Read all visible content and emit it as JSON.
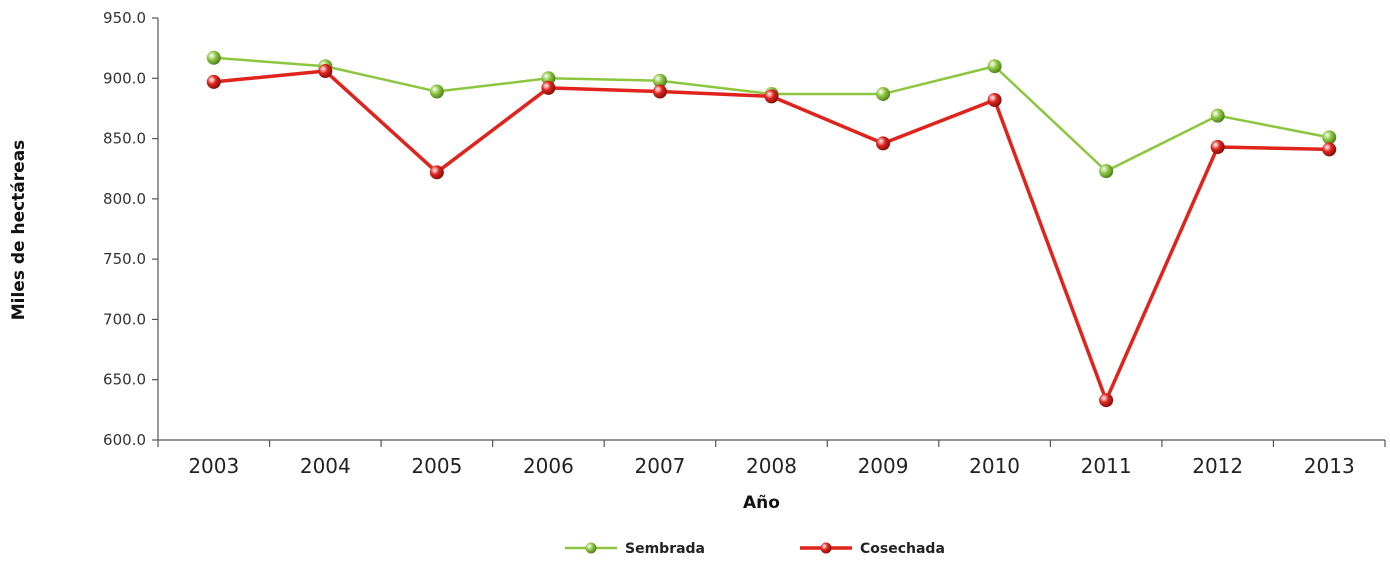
{
  "chart_data": {
    "type": "line",
    "xlabel": "Año",
    "ylabel": "Miles de hectáreas",
    "ylim": [
      600,
      950
    ],
    "yticks": [
      "600.0",
      "650.0",
      "700.0",
      "750.0",
      "800.0",
      "850.0",
      "900.0",
      "950.0"
    ],
    "categories": [
      "2003",
      "2004",
      "2005",
      "2006",
      "2007",
      "2008",
      "2009",
      "2010",
      "2011",
      "2012",
      "2013"
    ],
    "series": [
      {
        "name": "Sembrada",
        "color": "#8cc63f",
        "values": [
          917,
          910,
          889,
          900,
          898,
          887,
          887,
          910,
          823,
          869,
          851
        ]
      },
      {
        "name": "Cosechada",
        "color": "#e0231c",
        "values": [
          897,
          906,
          822,
          892,
          889,
          885,
          846,
          882,
          633,
          843,
          841
        ]
      }
    ],
    "grid": false,
    "legend": "bottom-center"
  }
}
